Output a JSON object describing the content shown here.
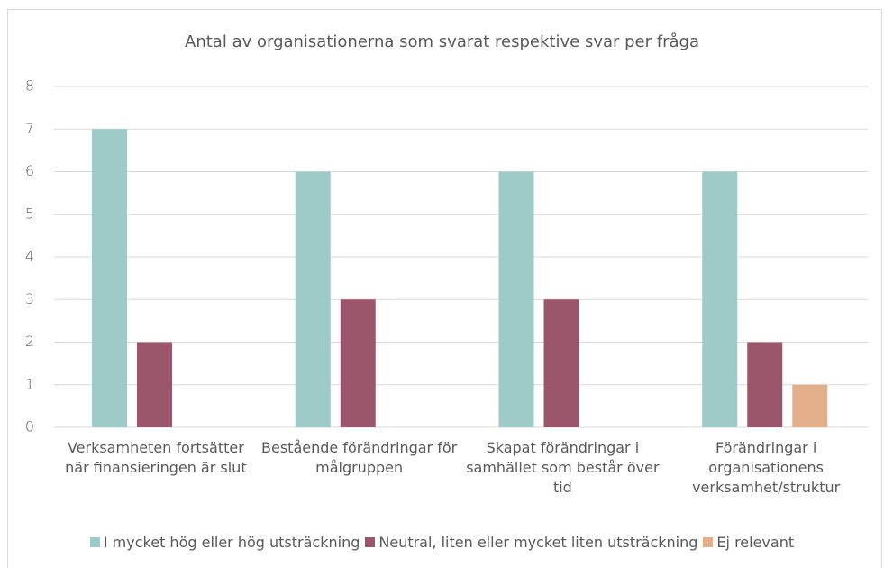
{
  "chart_data": {
    "type": "bar",
    "title": "Antal av organisationerna som svarat respektive svar per fråga",
    "categories": [
      "Verksamheten fortsätter när finansieringen är slut",
      "Bestående förändringar för målgruppen",
      "Skapat förändringar i samhället som består över tid",
      "Förändringar i organisationens verksamhet/struktur"
    ],
    "series": [
      {
        "name": "I mycket hög eller hög utsträckning",
        "color": "#9ecac8",
        "values": [
          7,
          6,
          6,
          6
        ]
      },
      {
        "name": "Neutral, liten eller mycket liten utsträckning",
        "color": "#9b566b",
        "values": [
          2,
          3,
          3,
          2
        ]
      },
      {
        "name": "Ej relevant",
        "color": "#e4b08c",
        "values": [
          0,
          0,
          0,
          1
        ]
      }
    ],
    "ylim": [
      0,
      8
    ],
    "yticks": [
      0,
      1,
      2,
      3,
      4,
      5,
      6,
      7,
      8
    ],
    "grid": true,
    "legend": "bottom"
  }
}
